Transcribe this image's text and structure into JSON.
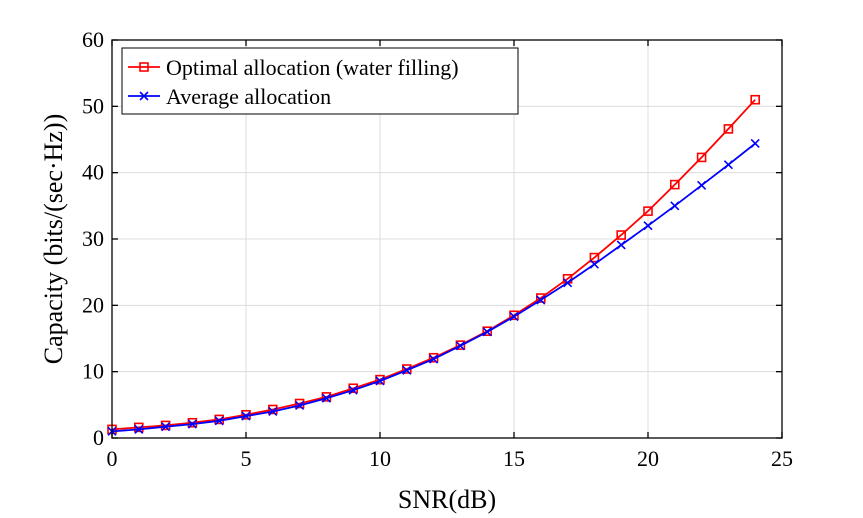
{
  "chart_data": {
    "type": "line",
    "xlabel": "SNR(dB)",
    "ylabel": "Capacity (bits/(sec·Hz))",
    "xlim": [
      0,
      25
    ],
    "ylim": [
      0,
      60
    ],
    "xticks": [
      0,
      5,
      10,
      15,
      20,
      25
    ],
    "yticks": [
      0,
      10,
      20,
      30,
      40,
      50,
      60
    ],
    "xtick_labels": [
      "0",
      "5",
      "10",
      "15",
      "20",
      "25"
    ],
    "ytick_labels": [
      "0",
      "10",
      "20",
      "30",
      "40",
      "50",
      "60"
    ],
    "grid": true,
    "legend_position": "top-left",
    "x": [
      0,
      1,
      2,
      3,
      4,
      5,
      6,
      7,
      8,
      9,
      10,
      11,
      12,
      13,
      14,
      15,
      16,
      17,
      18,
      19,
      20,
      21,
      22,
      23,
      24
    ],
    "series": [
      {
        "name": "Optimal allocation (water filling)",
        "color": "#ff0000",
        "marker": "square",
        "values": [
          1.3,
          1.6,
          1.9,
          2.3,
          2.8,
          3.5,
          4.3,
          5.2,
          6.2,
          7.5,
          8.8,
          10.4,
          12.1,
          14.0,
          16.1,
          18.5,
          21.1,
          24.0,
          27.2,
          30.6,
          34.2,
          38.2,
          42.3,
          46.6,
          51.0
        ]
      },
      {
        "name": "Average allocation",
        "color": "#0000ff",
        "marker": "x",
        "values": [
          1.0,
          1.3,
          1.7,
          2.1,
          2.6,
          3.3,
          4.0,
          4.9,
          6.0,
          7.2,
          8.6,
          10.2,
          11.9,
          13.9,
          16.0,
          18.3,
          20.8,
          23.4,
          26.2,
          29.1,
          32.0,
          35.0,
          38.1,
          41.2,
          44.4
        ]
      }
    ]
  }
}
